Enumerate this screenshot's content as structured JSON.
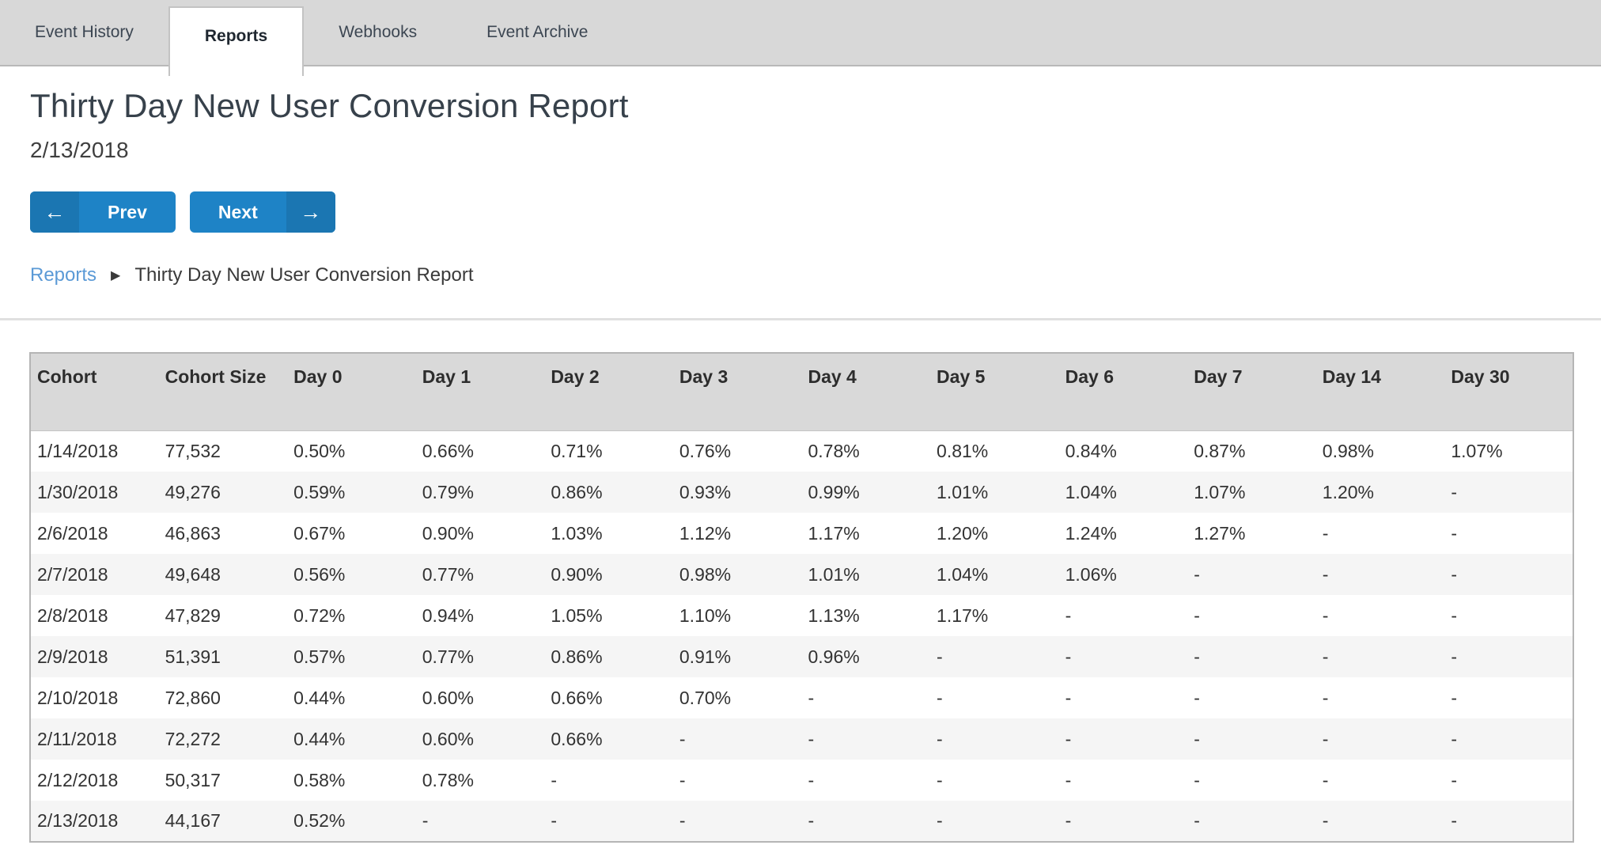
{
  "tabs": [
    {
      "label": "Event History",
      "active": false
    },
    {
      "label": "Reports",
      "active": true
    },
    {
      "label": "Webhooks",
      "active": false
    },
    {
      "label": "Event Archive",
      "active": false
    }
  ],
  "page": {
    "title": "Thirty Day New User Conversion Report",
    "date": "2/13/2018"
  },
  "nav": {
    "prev_label": "Prev",
    "prev_icon": "←",
    "next_label": "Next",
    "next_icon": "→"
  },
  "breadcrumb": {
    "parent": "Reports",
    "separator": "▶",
    "current": "Thirty Day New User Conversion Report"
  },
  "colors": {
    "button_blue": "#1e83c6",
    "button_blue_dark": "#1b76b2",
    "link_blue": "#5b9ad6",
    "tabbar_gray": "#d8d8d8",
    "header_gray": "#d9d9d9",
    "row_alt_gray": "#f5f5f5"
  },
  "chart_data": {
    "type": "table",
    "title": "Thirty Day New User Conversion Report",
    "columns": [
      "Cohort",
      "Cohort Size",
      "Day 0",
      "Day 1",
      "Day 2",
      "Day 3",
      "Day 4",
      "Day 5",
      "Day 6",
      "Day 7",
      "Day 14",
      "Day 30"
    ],
    "rows": [
      [
        "1/14/2018",
        "77,532",
        "0.50%",
        "0.66%",
        "0.71%",
        "0.76%",
        "0.78%",
        "0.81%",
        "0.84%",
        "0.87%",
        "0.98%",
        "1.07%"
      ],
      [
        "1/30/2018",
        "49,276",
        "0.59%",
        "0.79%",
        "0.86%",
        "0.93%",
        "0.99%",
        "1.01%",
        "1.04%",
        "1.07%",
        "1.20%",
        "-"
      ],
      [
        "2/6/2018",
        "46,863",
        "0.67%",
        "0.90%",
        "1.03%",
        "1.12%",
        "1.17%",
        "1.20%",
        "1.24%",
        "1.27%",
        "-",
        "-"
      ],
      [
        "2/7/2018",
        "49,648",
        "0.56%",
        "0.77%",
        "0.90%",
        "0.98%",
        "1.01%",
        "1.04%",
        "1.06%",
        "-",
        "-",
        "-"
      ],
      [
        "2/8/2018",
        "47,829",
        "0.72%",
        "0.94%",
        "1.05%",
        "1.10%",
        "1.13%",
        "1.17%",
        "-",
        "-",
        "-",
        "-"
      ],
      [
        "2/9/2018",
        "51,391",
        "0.57%",
        "0.77%",
        "0.86%",
        "0.91%",
        "0.96%",
        "-",
        "-",
        "-",
        "-",
        "-"
      ],
      [
        "2/10/2018",
        "72,860",
        "0.44%",
        "0.60%",
        "0.66%",
        "0.70%",
        "-",
        "-",
        "-",
        "-",
        "-",
        "-"
      ],
      [
        "2/11/2018",
        "72,272",
        "0.44%",
        "0.60%",
        "0.66%",
        "-",
        "-",
        "-",
        "-",
        "-",
        "-",
        "-"
      ],
      [
        "2/12/2018",
        "50,317",
        "0.58%",
        "0.78%",
        "-",
        "-",
        "-",
        "-",
        "-",
        "-",
        "-",
        "-"
      ],
      [
        "2/13/2018",
        "44,167",
        "0.52%",
        "-",
        "-",
        "-",
        "-",
        "-",
        "-",
        "-",
        "-",
        "-"
      ]
    ]
  }
}
